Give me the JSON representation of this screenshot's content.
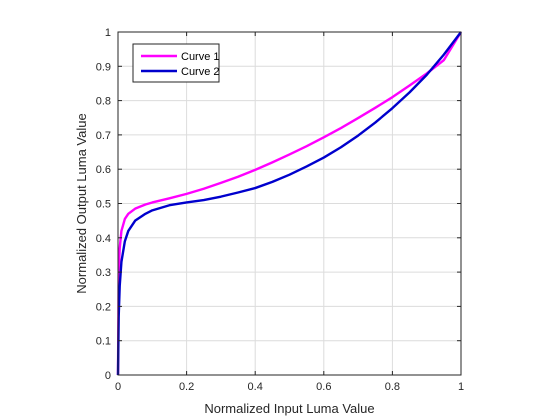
{
  "chart_data": {
    "type": "line",
    "title": "",
    "xlabel": "Normalized Input Luma Value",
    "ylabel": "Normalized Output Luma Value",
    "xlim": [
      0,
      1
    ],
    "ylim": [
      0,
      1
    ],
    "xticks": [
      "0",
      "0.2",
      "0.4",
      "0.6",
      "0.8",
      "1"
    ],
    "yticks": [
      "0",
      "0.1",
      "0.2",
      "0.3",
      "0.4",
      "0.5",
      "0.6",
      "0.7",
      "0.8",
      "0.9",
      "1"
    ],
    "grid": true,
    "legend_position": "top-left",
    "series": [
      {
        "name": "Curve 1",
        "color": "#ff00ff",
        "x": [
          0,
          0.002,
          0.005,
          0.01,
          0.02,
          0.03,
          0.05,
          0.08,
          0.1,
          0.15,
          0.2,
          0.25,
          0.3,
          0.35,
          0.4,
          0.45,
          0.5,
          0.55,
          0.6,
          0.65,
          0.7,
          0.75,
          0.8,
          0.85,
          0.9,
          0.95,
          1.0
        ],
        "y": [
          0,
          0.3,
          0.37,
          0.42,
          0.455,
          0.47,
          0.485,
          0.497,
          0.503,
          0.515,
          0.528,
          0.543,
          0.56,
          0.578,
          0.598,
          0.62,
          0.643,
          0.667,
          0.693,
          0.72,
          0.749,
          0.779,
          0.81,
          0.844,
          0.879,
          0.918,
          1.0
        ]
      },
      {
        "name": "Curve 2",
        "color": "#0000cd",
        "x": [
          0,
          0.002,
          0.005,
          0.01,
          0.02,
          0.03,
          0.05,
          0.08,
          0.1,
          0.15,
          0.2,
          0.25,
          0.3,
          0.35,
          0.4,
          0.45,
          0.5,
          0.55,
          0.6,
          0.65,
          0.7,
          0.75,
          0.8,
          0.85,
          0.9,
          0.95,
          1.0
        ],
        "y": [
          0,
          0.17,
          0.26,
          0.33,
          0.39,
          0.42,
          0.45,
          0.47,
          0.48,
          0.495,
          0.503,
          0.51,
          0.52,
          0.532,
          0.545,
          0.563,
          0.584,
          0.608,
          0.634,
          0.664,
          0.698,
          0.736,
          0.778,
          0.824,
          0.875,
          0.934,
          1.0
        ]
      }
    ]
  }
}
